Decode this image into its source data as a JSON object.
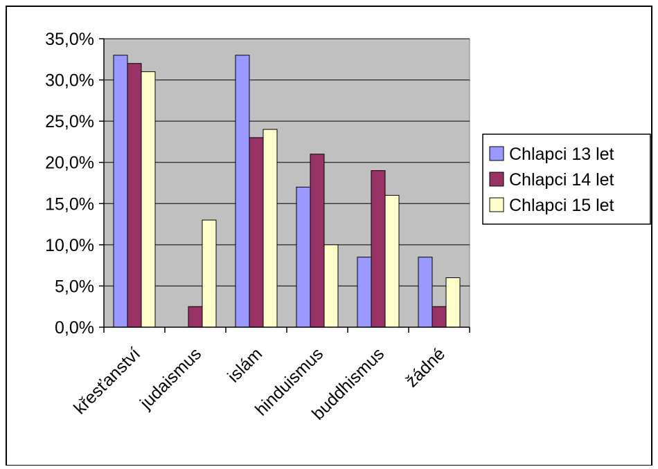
{
  "chart_data": {
    "type": "bar",
    "categories": [
      "křesťanství",
      "judaismus",
      "islám",
      "hinduismus",
      "buddhismus",
      "žádné"
    ],
    "series": [
      {
        "name": "Chlapci 13 let",
        "color": "#9999ff",
        "values": [
          33.0,
          0.0,
          33.0,
          17.0,
          8.5,
          8.5
        ]
      },
      {
        "name": "Chlapci 14 let",
        "color": "#993366",
        "values": [
          32.0,
          2.5,
          23.0,
          21.0,
          19.0,
          2.5
        ]
      },
      {
        "name": "Chlapci 15 let",
        "color": "#ffffcc",
        "values": [
          31.0,
          13.0,
          24.0,
          10.0,
          16.0,
          6.0
        ]
      }
    ],
    "ylim": [
      0,
      35
    ],
    "yticks": [
      "0,0%",
      "5,0%",
      "10,0%",
      "15,0%",
      "20,0%",
      "25,0%",
      "30,0%",
      "35,0%"
    ],
    "grid": true,
    "legend": "right",
    "plot_background": "#c0c0c0",
    "title": "",
    "xlabel": "",
    "ylabel": ""
  }
}
